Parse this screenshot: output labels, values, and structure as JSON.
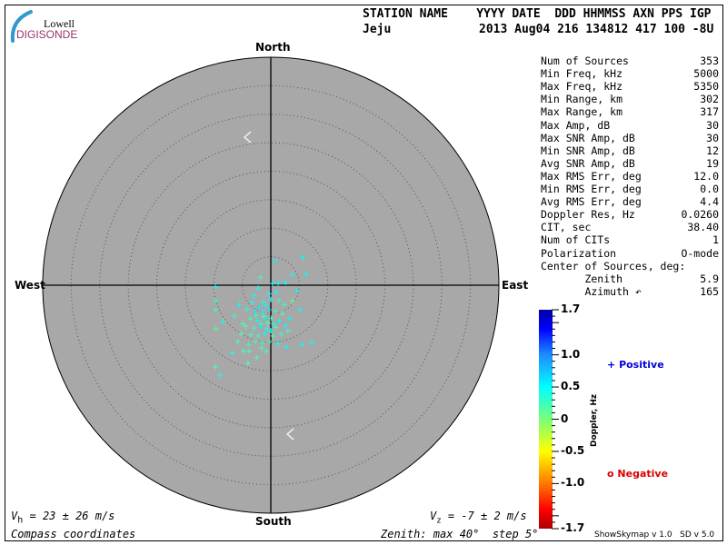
{
  "logo": {
    "line1": "Lowell",
    "line2": "DIGISONDE",
    "arc_color": "#3399cc",
    "text_color": "#993366"
  },
  "header": {
    "labels_row": "STATION NAME    YYYY DATE  DDD HHMMSS AXN PPS IGP",
    "station": "Jeju",
    "values_row": "2013 Aug04 216 134812 417 100 -8U"
  },
  "stats": [
    {
      "name": "Num of Sources",
      "value": "353"
    },
    {
      "name": "Min Freq, kHz",
      "value": "5000"
    },
    {
      "name": "Max Freq, kHz",
      "value": "5350"
    },
    {
      "name": "Min Range, km",
      "value": "302"
    },
    {
      "name": "Max Range, km",
      "value": "317"
    },
    {
      "name": "Max Amp, dB",
      "value": "30"
    },
    {
      "name": "Max SNR Amp, dB",
      "value": "30"
    },
    {
      "name": "Min SNR Amp, dB",
      "value": "12"
    },
    {
      "name": "Avg SNR Amp, dB",
      "value": "19"
    },
    {
      "name": "Max RMS Err, deg",
      "value": "12.0"
    },
    {
      "name": "Min RMS Err, deg",
      "value": "0.0"
    },
    {
      "name": "Avg RMS Err, deg",
      "value": "4.4"
    },
    {
      "name": "Doppler Res, Hz",
      "value": "0.0260"
    },
    {
      "name": "CIT, sec",
      "value": "38.40"
    },
    {
      "name": "Num of CITs",
      "value": "1"
    },
    {
      "name": "Polarization",
      "value": "O-mode"
    },
    {
      "name": "Center of Sources, deg:",
      "value": ""
    },
    {
      "name": "       Zenith",
      "value": "5.9"
    },
    {
      "name": "       Azimuth ↶",
      "value": "165"
    }
  ],
  "footer": {
    "vh_label": "V",
    "vh_sub": "h",
    "vh_value": " = 23 ± 26 m/s",
    "vz_label": "V",
    "vz_sub": "z",
    "vz_value": " = -7 ± 2 m/s",
    "coords": "Compass coordinates",
    "zenith": "Zenith: max 40°  step 5°",
    "version": "ShowSkymap v 1.0   SD v 5.0"
  },
  "chart_data": {
    "type": "scatter",
    "projection": "polar skymap",
    "directions": {
      "north": "North",
      "south": "South",
      "east": "East",
      "west": "West"
    },
    "zenith_max_deg": 40,
    "zenith_step_deg": 5,
    "plot_bg": "#a8a8a8",
    "colorbar": {
      "label": "Doppler, Hz",
      "range": [
        -1.7,
        1.7
      ],
      "ticks": [
        "1.7",
        "1.0",
        "0.5",
        "0",
        "-0.5",
        "-1.0",
        "-1.7"
      ],
      "tick_values": [
        1.7,
        1.0,
        0.5,
        0,
        -0.5,
        -1.0,
        -1.7
      ]
    },
    "legend": [
      {
        "symbol": "+",
        "label": "Positive",
        "color": "#0000dd"
      },
      {
        "symbol": "o",
        "label": "Negative",
        "color": "#dd0000"
      }
    ],
    "point_fields": [
      "east_deg",
      "north_deg",
      "doppler_hz"
    ],
    "points": [
      [
        0.8,
        4.3,
        0.55
      ],
      [
        5.6,
        4.9,
        0.45
      ],
      [
        6.2,
        1.9,
        0.5
      ],
      [
        3.8,
        1.8,
        0.5
      ],
      [
        -1.8,
        1.4,
        0.3
      ],
      [
        -9.7,
        -0.3,
        0.5
      ],
      [
        -9.6,
        -2.7,
        0.3
      ],
      [
        -9.7,
        -4.3,
        0.3
      ],
      [
        -8.4,
        -6.4,
        0.4
      ],
      [
        -9.6,
        -7.6,
        0.2
      ],
      [
        -6.4,
        -5.4,
        0.3
      ],
      [
        5.1,
        -4.3,
        0.5
      ],
      [
        7.2,
        -10.2,
        0.5
      ],
      [
        5.4,
        -10.4,
        0.5
      ],
      [
        2.7,
        -10.8,
        0.5
      ],
      [
        -6.7,
        -11.9,
        0.4
      ],
      [
        -4.8,
        -11.6,
        0.2
      ],
      [
        -3.8,
        -11.6,
        0.2
      ],
      [
        -2.5,
        -12.7,
        0.2
      ],
      [
        -4.0,
        -13.7,
        0.2
      ],
      [
        -9.7,
        -14.3,
        0.2
      ],
      [
        -8.9,
        -15.8,
        0.4
      ],
      [
        -0.8,
        -11.6,
        0.2
      ],
      [
        -1.6,
        -11.0,
        0.2
      ],
      [
        0.3,
        0.3,
        0.5
      ],
      [
        1.3,
        0.3,
        0.5
      ],
      [
        2.6,
        0.5,
        0.5
      ],
      [
        -2.2,
        -0.5,
        0.5
      ],
      [
        -3.3,
        -3.0,
        0.5
      ],
      [
        -1.4,
        -2.9,
        0.4
      ],
      [
        0.0,
        -2.5,
        0.5
      ],
      [
        1.4,
        -2.7,
        0.3
      ],
      [
        2.4,
        -3.4,
        0.3
      ],
      [
        -4.2,
        -4.2,
        0.4
      ],
      [
        -2.8,
        -4.6,
        0.6
      ],
      [
        -1.5,
        -4.8,
        0.5
      ],
      [
        -0.4,
        -4.3,
        0.6
      ],
      [
        0.8,
        -4.6,
        0.3
      ],
      [
        2.0,
        -5.0,
        0.2
      ],
      [
        -3.6,
        -5.9,
        0.3
      ],
      [
        -2.3,
        -6.2,
        0.5
      ],
      [
        -1.0,
        -6.0,
        0.6
      ],
      [
        0.1,
        -5.8,
        0.3
      ],
      [
        1.5,
        -6.3,
        0.5
      ],
      [
        -4.4,
        -7.2,
        0.2
      ],
      [
        -3.0,
        -7.5,
        0.3
      ],
      [
        -1.8,
        -7.3,
        0.6
      ],
      [
        -0.6,
        -7.6,
        0.4
      ],
      [
        0.9,
        -7.4,
        0.2
      ],
      [
        2.6,
        -7.1,
        0.5
      ],
      [
        -3.5,
        -8.7,
        0.2
      ],
      [
        -2.2,
        -8.9,
        0.3
      ],
      [
        -1.0,
        -8.5,
        0.5
      ],
      [
        0.4,
        -8.9,
        0.2
      ],
      [
        1.8,
        -8.6,
        0.3
      ],
      [
        -2.7,
        -9.8,
        0.2
      ],
      [
        -1.5,
        -10.1,
        0.3
      ],
      [
        -0.2,
        -9.9,
        0.2
      ],
      [
        1.2,
        -10.3,
        0.5
      ],
      [
        -5.5,
        -3.4,
        0.5
      ],
      [
        -4.9,
        -6.8,
        0.2
      ],
      [
        -5.2,
        -8.5,
        0.2
      ],
      [
        3.3,
        -5.8,
        0.5
      ],
      [
        3.0,
        -8.0,
        0.3
      ],
      [
        -2.0,
        -3.8,
        0.6
      ],
      [
        -0.9,
        -3.5,
        0.5
      ],
      [
        -1.2,
        -5.5,
        0.2
      ],
      [
        -2.6,
        -5.3,
        0.3
      ],
      [
        0.5,
        -6.8,
        0.4
      ],
      [
        -0.3,
        -1.5,
        0.5
      ],
      [
        1.0,
        -1.2,
        0.5
      ],
      [
        -3.0,
        -1.8,
        0.5
      ],
      [
        4.6,
        -1.0,
        0.5
      ],
      [
        -5.8,
        -9.9,
        0.2
      ],
      [
        -0.5,
        -6.6,
        0.2
      ],
      [
        -1.7,
        -6.8,
        0.3
      ],
      [
        0.0,
        -8.0,
        0.5
      ],
      [
        -3.9,
        -10.4,
        0.3
      ],
      [
        3.8,
        -2.8,
        0.1
      ]
    ]
  }
}
